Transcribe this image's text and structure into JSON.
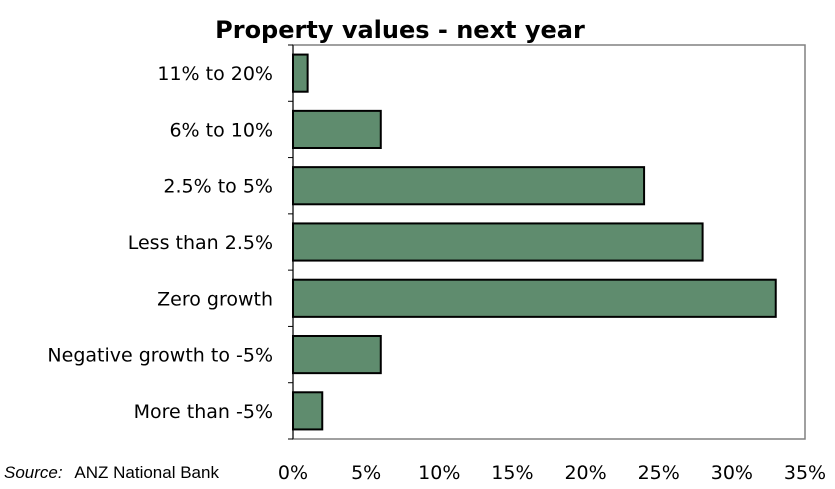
{
  "source": {
    "label": "Source:",
    "value": "ANZ National Bank"
  },
  "colors": {
    "bar_fill": "#5f8c6e",
    "bar_stroke": "#000000",
    "plot_border": "#808080",
    "background": "#ffffff"
  },
  "chart_data": {
    "type": "bar",
    "orientation": "horizontal",
    "title": "Property values - next year",
    "xlabel": "",
    "ylabel": "",
    "categories": [
      "11% to 20%",
      "6% to 10%",
      "2.5% to 5%",
      "Less than 2.5%",
      "Zero growth",
      "Negative growth to -5%",
      "More than -5%"
    ],
    "values": [
      1,
      6,
      24,
      28,
      33,
      6,
      2
    ],
    "value_unit": "%",
    "xlim": [
      0,
      35
    ],
    "xticks": [
      "0%",
      "5%",
      "10%",
      "15%",
      "20%",
      "25%",
      "30%",
      "35%"
    ],
    "grid": false,
    "legend": "none"
  }
}
